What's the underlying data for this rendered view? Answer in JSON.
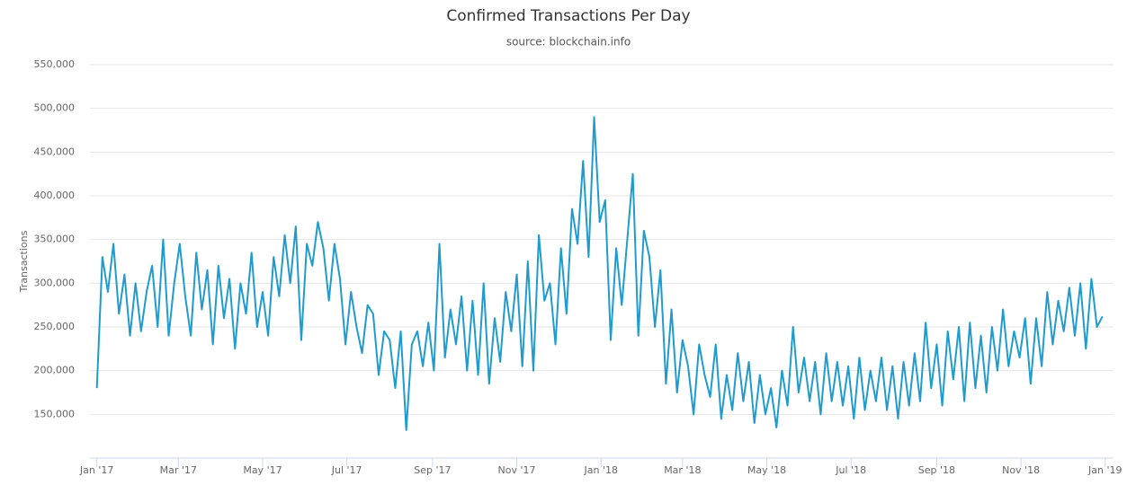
{
  "chart_data": {
    "type": "line",
    "title": "Confirmed Transactions Per Day",
    "subtitle": "source: blockchain.info",
    "y_label": "Transactions",
    "x": [
      0,
      4,
      8,
      12,
      16,
      20,
      24,
      28,
      32,
      36,
      40,
      44,
      48,
      52,
      56,
      60,
      64,
      68,
      72,
      76,
      80,
      84,
      88,
      92,
      96,
      100,
      104,
      108,
      112,
      116,
      120,
      124,
      128,
      132,
      136,
      140,
      144,
      148,
      152,
      156,
      160,
      164,
      168,
      172,
      176,
      180,
      184,
      188,
      192,
      196,
      200,
      204,
      208,
      212,
      216,
      220,
      224,
      228,
      232,
      236,
      240,
      244,
      248,
      252,
      256,
      260,
      264,
      268,
      272,
      276,
      280,
      284,
      288,
      292,
      296,
      300,
      304,
      308,
      312,
      316,
      320,
      324,
      328,
      332,
      336,
      340,
      344,
      348,
      352,
      356,
      360,
      364,
      368,
      372,
      376,
      380,
      384,
      388,
      392,
      396,
      400,
      404,
      408,
      412,
      416,
      420,
      424,
      428,
      432,
      436,
      440,
      444,
      448,
      452,
      456,
      460,
      464,
      468,
      472,
      476,
      480,
      484,
      488,
      492,
      496,
      500,
      504,
      508,
      512,
      516,
      520,
      524,
      528,
      532,
      536,
      540,
      544,
      548,
      552,
      556,
      560,
      564,
      568,
      572,
      576,
      580,
      584,
      588,
      592,
      596,
      600,
      604,
      608,
      612,
      616,
      620,
      624,
      628,
      632,
      636,
      640,
      644,
      648,
      652,
      656,
      660,
      664,
      668,
      672,
      676,
      680,
      684,
      688,
      692,
      696,
      700,
      704,
      708,
      712,
      716,
      720,
      724,
      728
    ],
    "series": [
      {
        "name": "Transactions",
        "color": "#1f9bcf",
        "values": [
          180000,
          330000,
          290000,
          345000,
          265000,
          310000,
          240000,
          300000,
          245000,
          290000,
          320000,
          250000,
          350000,
          240000,
          300000,
          345000,
          285000,
          240000,
          335000,
          270000,
          315000,
          230000,
          320000,
          260000,
          305000,
          225000,
          300000,
          265000,
          335000,
          250000,
          290000,
          240000,
          330000,
          285000,
          355000,
          300000,
          365000,
          235000,
          345000,
          320000,
          370000,
          340000,
          280000,
          345000,
          305000,
          230000,
          290000,
          250000,
          220000,
          275000,
          265000,
          195000,
          245000,
          235000,
          180000,
          245000,
          132000,
          230000,
          245000,
          205000,
          255000,
          200000,
          345000,
          215000,
          270000,
          230000,
          285000,
          200000,
          280000,
          195000,
          300000,
          185000,
          260000,
          210000,
          290000,
          245000,
          310000,
          205000,
          325000,
          200000,
          355000,
          280000,
          300000,
          230000,
          340000,
          265000,
          385000,
          345000,
          440000,
          330000,
          490000,
          370000,
          395000,
          235000,
          340000,
          275000,
          350000,
          425000,
          240000,
          360000,
          330000,
          250000,
          315000,
          185000,
          270000,
          175000,
          235000,
          205000,
          150000,
          230000,
          195000,
          170000,
          230000,
          145000,
          195000,
          155000,
          220000,
          165000,
          210000,
          140000,
          195000,
          150000,
          180000,
          135000,
          200000,
          160000,
          250000,
          175000,
          215000,
          165000,
          210000,
          150000,
          220000,
          165000,
          210000,
          160000,
          205000,
          145000,
          215000,
          155000,
          200000,
          165000,
          215000,
          155000,
          205000,
          145000,
          210000,
          160000,
          220000,
          165000,
          255000,
          180000,
          230000,
          160000,
          245000,
          190000,
          250000,
          165000,
          255000,
          180000,
          240000,
          175000,
          250000,
          200000,
          270000,
          205000,
          245000,
          215000,
          260000,
          185000,
          260000,
          205000,
          290000,
          230000,
          280000,
          245000,
          295000,
          240000,
          300000,
          225000,
          305000,
          250000,
          262000
        ]
      }
    ],
    "xlim": [
      -5,
      736
    ],
    "xticks": [
      {
        "value": 0,
        "label": "Jan '17"
      },
      {
        "value": 59,
        "label": "Mar '17"
      },
      {
        "value": 120,
        "label": "May '17"
      },
      {
        "value": 181,
        "label": "Jul '17"
      },
      {
        "value": 243,
        "label": "Sep '17"
      },
      {
        "value": 304,
        "label": "Nov '17"
      },
      {
        "value": 365,
        "label": "Jan '18"
      },
      {
        "value": 424,
        "label": "Mar '18"
      },
      {
        "value": 485,
        "label": "May '18"
      },
      {
        "value": 546,
        "label": "Jul '18"
      },
      {
        "value": 608,
        "label": "Sep '18"
      },
      {
        "value": 669,
        "label": "Nov '18"
      },
      {
        "value": 730,
        "label": "Jan '19"
      }
    ],
    "ylim": [
      100000,
      550000
    ],
    "yticks": [
      {
        "value": 150000,
        "label": "150,000"
      },
      {
        "value": 200000,
        "label": "200,000"
      },
      {
        "value": 250000,
        "label": "250,000"
      },
      {
        "value": 300000,
        "label": "300,000"
      },
      {
        "value": 350000,
        "label": "350,000"
      },
      {
        "value": 400000,
        "label": "400,000"
      },
      {
        "value": 450000,
        "label": "450,000"
      },
      {
        "value": 500000,
        "label": "500,000"
      },
      {
        "value": 550000,
        "label": "550,000"
      }
    ],
    "grid": true
  }
}
